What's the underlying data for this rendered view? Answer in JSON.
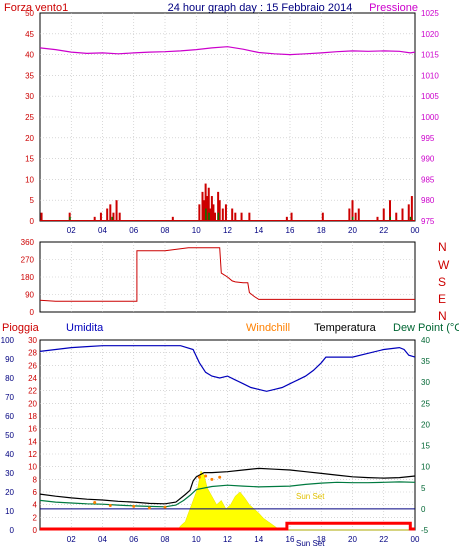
{
  "header": {
    "left_title": "Forza vento1",
    "center_title": "24 hour graph day : 15 Febbraio 2014",
    "right_title": "Pressione"
  },
  "panel2_labels": [
    "N",
    "W",
    "S",
    "E",
    "N"
  ],
  "panel3_header": {
    "pioggia": "Pioggia",
    "umidita": "Umidita",
    "windchill": "Windchill",
    "temperatura": "Temperatura",
    "dewpoint": "Dew Point (°C"
  },
  "annotations": {
    "sun_set": "Sun Set",
    "sun_set_axis": "Sun Set"
  },
  "colors": {
    "wind": "#cc0000",
    "gust": "#007700",
    "pressure": "#cc00cc",
    "direction": "#cc0000",
    "humidity": "#0000bb",
    "temperature": "#000000",
    "dewpoint": "#007a40",
    "windchill": "#ff8000",
    "solar": "#ffff00",
    "rain": "#ff0000",
    "grid": "#c0c0c0",
    "title": "#000080",
    "axis_red": "#cc0000",
    "axis_green": "#006633"
  },
  "chart_data": [
    {
      "type": "bar",
      "ylim_left": [
        0,
        50
      ],
      "yticks_left": [
        0,
        5,
        10,
        15,
        20,
        25,
        30,
        35,
        40,
        45,
        50
      ],
      "ylim_right": [
        975,
        1025
      ],
      "yticks_right": [
        975,
        980,
        985,
        990,
        995,
        1000,
        1005,
        1010,
        1015,
        1020,
        1025
      ],
      "xlim": [
        0,
        24
      ],
      "xticks": [
        "02",
        "04",
        "06",
        "08",
        "10",
        "12",
        "14",
        "16",
        "18",
        "20",
        "22",
        "00"
      ],
      "grid": true,
      "series": [
        {
          "axis": "left",
          "type": "bar",
          "points": [
            [
              0.1,
              2
            ],
            [
              1.9,
              2
            ],
            [
              3.5,
              1
            ],
            [
              3.9,
              2
            ],
            [
              4.3,
              3
            ],
            [
              4.5,
              4
            ],
            [
              4.7,
              2
            ],
            [
              4.9,
              5
            ],
            [
              5.1,
              2
            ],
            [
              8.5,
              1
            ],
            [
              10.2,
              4
            ],
            [
              10.4,
              7
            ],
            [
              10.5,
              5
            ],
            [
              10.6,
              9
            ],
            [
              10.7,
              6
            ],
            [
              10.8,
              8
            ],
            [
              10.9,
              3
            ],
            [
              11.0,
              6
            ],
            [
              11.1,
              4
            ],
            [
              11.2,
              2
            ],
            [
              11.4,
              7
            ],
            [
              11.5,
              5
            ],
            [
              11.7,
              3
            ],
            [
              11.9,
              4
            ],
            [
              12.3,
              3
            ],
            [
              12.5,
              2
            ],
            [
              12.9,
              2
            ],
            [
              13.4,
              2
            ],
            [
              15.8,
              1
            ],
            [
              16.1,
              2
            ],
            [
              18.1,
              2
            ],
            [
              19.8,
              3
            ],
            [
              20.0,
              5
            ],
            [
              20.2,
              2
            ],
            [
              20.4,
              3
            ],
            [
              21.6,
              1
            ],
            [
              22.0,
              3
            ],
            [
              22.4,
              5
            ],
            [
              22.8,
              2
            ],
            [
              23.2,
              3
            ],
            [
              23.6,
              4
            ],
            [
              23.8,
              6
            ]
          ]
        },
        {
          "axis": "left",
          "type": "bar",
          "points": [
            [
              1.9,
              1
            ],
            [
              4.6,
              1
            ],
            [
              10.6,
              3
            ],
            [
              10.8,
              2
            ],
            [
              11.4,
              2
            ],
            [
              20.0,
              1
            ],
            [
              22.4,
              1
            ],
            [
              23.7,
              1
            ]
          ]
        },
        {
          "axis": "right",
          "type": "line",
          "points": [
            [
              0,
              1016.6
            ],
            [
              1,
              1016.2
            ],
            [
              2,
              1015.6
            ],
            [
              3,
              1015.3
            ],
            [
              4,
              1015.4
            ],
            [
              5,
              1015.2
            ],
            [
              6,
              1015.4
            ],
            [
              7,
              1015.6
            ],
            [
              8,
              1015.7
            ],
            [
              9,
              1015.9
            ],
            [
              10,
              1016.2
            ],
            [
              11,
              1016.6
            ],
            [
              12,
              1016.9
            ],
            [
              13,
              1016.3
            ],
            [
              14,
              1015.5
            ],
            [
              15,
              1015.2
            ],
            [
              16,
              1015.0
            ],
            [
              17,
              1015.2
            ],
            [
              18,
              1015.4
            ],
            [
              19,
              1015.7
            ],
            [
              20,
              1015.9
            ],
            [
              21,
              1015.8
            ],
            [
              22,
              1015.9
            ],
            [
              23,
              1015.8
            ],
            [
              23.7,
              1015.4
            ],
            [
              24,
              1015.6
            ]
          ]
        }
      ]
    },
    {
      "type": "line",
      "ylim_left": [
        0,
        360
      ],
      "yticks_left": [
        0,
        90,
        180,
        270,
        360
      ],
      "xlim": [
        0,
        24
      ],
      "grid": true,
      "series": [
        {
          "type": "step",
          "points": [
            [
              0,
              60
            ],
            [
              1,
              55
            ],
            [
              2,
              55
            ],
            [
              3,
              55
            ],
            [
              4,
              55
            ],
            [
              5,
              55
            ],
            [
              6,
              55
            ],
            [
              6.2,
              55
            ],
            [
              6.2,
              315
            ],
            [
              7,
              315
            ],
            [
              8,
              315
            ],
            [
              9,
              325
            ],
            [
              9.5,
              330
            ],
            [
              10,
              330
            ],
            [
              11,
              330
            ],
            [
              11.5,
              330
            ],
            [
              11.6,
              200
            ],
            [
              12,
              180
            ],
            [
              12.3,
              160
            ],
            [
              12.5,
              155
            ],
            [
              13,
              150
            ],
            [
              13.3,
              150
            ],
            [
              13.4,
              100
            ],
            [
              13.7,
              80
            ],
            [
              14,
              65
            ],
            [
              15,
              65
            ],
            [
              16,
              65
            ],
            [
              17,
              65
            ],
            [
              18,
              65
            ],
            [
              19,
              65
            ],
            [
              20,
              65
            ],
            [
              21,
              65
            ],
            [
              22,
              65
            ],
            [
              23,
              65
            ],
            [
              24,
              65
            ]
          ]
        }
      ]
    },
    {
      "type": "line",
      "ylim_left": [
        0,
        100
      ],
      "yticks_left": [
        0,
        10,
        20,
        30,
        40,
        50,
        60,
        70,
        80,
        90,
        100
      ],
      "yticks_pioggia": [
        0,
        2,
        4,
        6,
        8,
        10,
        12,
        14,
        16,
        18,
        20,
        22,
        24,
        26,
        28,
        30
      ],
      "ylim_right": [
        -5,
        40
      ],
      "yticks_right": [
        -5,
        0,
        5,
        10,
        15,
        20,
        25,
        30,
        35,
        40
      ],
      "xlim": [
        0,
        24
      ],
      "xticks": [
        "02",
        "04",
        "06",
        "08",
        "10",
        "12",
        "14",
        "16",
        "18",
        "20",
        "22",
        "00"
      ],
      "grid": true,
      "series": [
        {
          "axis": "left",
          "type": "line",
          "points": [
            [
              0,
              94
            ],
            [
              1,
              95
            ],
            [
              2,
              96
            ],
            [
              3,
              96.5
            ],
            [
              4,
              97
            ],
            [
              5,
              97
            ],
            [
              6,
              97
            ],
            [
              7,
              97
            ],
            [
              8,
              97
            ],
            [
              9,
              97
            ],
            [
              9.8,
              95
            ],
            [
              10.2,
              88
            ],
            [
              10.6,
              83
            ],
            [
              11,
              81
            ],
            [
              11.5,
              80
            ],
            [
              12,
              81
            ],
            [
              12.5,
              79
            ],
            [
              13,
              77
            ],
            [
              13.5,
              75
            ],
            [
              14,
              74
            ],
            [
              14.5,
              73
            ],
            [
              15,
              74
            ],
            [
              15.5,
              75
            ],
            [
              16,
              77
            ],
            [
              16.5,
              79
            ],
            [
              17,
              81
            ],
            [
              17.5,
              84
            ],
            [
              18,
              88
            ],
            [
              18.3,
              91
            ],
            [
              19,
              91
            ],
            [
              20,
              91
            ],
            [
              21,
              93
            ],
            [
              22,
              95
            ],
            [
              23,
              96
            ],
            [
              23.3,
              95
            ],
            [
              23.6,
              92
            ],
            [
              24,
              91
            ]
          ]
        },
        {
          "axis": "right",
          "type": "line",
          "points": [
            [
              0,
              3.5
            ],
            [
              1,
              3
            ],
            [
              2,
              2.6
            ],
            [
              3,
              2.3
            ],
            [
              4,
              2.1
            ],
            [
              5,
              1.8
            ],
            [
              6,
              1.6
            ],
            [
              7,
              1.3
            ],
            [
              8,
              1.2
            ],
            [
              8.7,
              1.6
            ],
            [
              9.3,
              3.4
            ],
            [
              9.6,
              4.4
            ],
            [
              9.8,
              6.6
            ],
            [
              10,
              7.6
            ],
            [
              10.5,
              8.6
            ],
            [
              11,
              8.6
            ],
            [
              12,
              8.8
            ],
            [
              13,
              9.2
            ],
            [
              14,
              9.6
            ],
            [
              15,
              9.4
            ],
            [
              16,
              9.2
            ],
            [
              17,
              8.8
            ],
            [
              18,
              8.4
            ],
            [
              19,
              8
            ],
            [
              20,
              7.6
            ],
            [
              21,
              7.4
            ],
            [
              22,
              7.3
            ],
            [
              23,
              7.4
            ],
            [
              24,
              7.8
            ]
          ]
        },
        {
          "axis": "right",
          "type": "line",
          "points": [
            [
              0,
              2
            ],
            [
              1,
              1.6
            ],
            [
              2,
              1.4
            ],
            [
              3,
              1.2
            ],
            [
              4,
              1.1
            ],
            [
              5,
              0.9
            ],
            [
              6,
              0.7
            ],
            [
              7,
              0.6
            ],
            [
              8,
              0.5
            ],
            [
              8.7,
              0.9
            ],
            [
              9.2,
              2
            ],
            [
              9.6,
              3.2
            ],
            [
              10,
              4.6
            ],
            [
              11,
              5.3
            ],
            [
              12,
              5.6
            ],
            [
              13,
              5.4
            ],
            [
              14,
              5.2
            ],
            [
              15,
              5.3
            ],
            [
              16,
              5.4
            ],
            [
              17,
              5.8
            ],
            [
              18,
              6.1
            ],
            [
              19,
              6.3
            ],
            [
              20,
              6.2
            ],
            [
              21,
              6.2
            ],
            [
              22,
              6.3
            ],
            [
              23,
              6.4
            ],
            [
              24,
              6.3
            ]
          ]
        },
        {
          "axis": "right",
          "type": "line",
          "points": [
            [
              3.5,
              1.5
            ],
            [
              4.5,
              0.8
            ],
            [
              6,
              0.6
            ],
            [
              7,
              0.2
            ],
            [
              8,
              0.4
            ],
            [
              10.2,
              7.5
            ],
            [
              10.6,
              7.8
            ],
            [
              11,
              7.0
            ],
            [
              11.5,
              7.5
            ]
          ]
        },
        {
          "axis": "right",
          "type": "area",
          "points": [
            [
              0,
              0
            ],
            [
              8.8,
              0
            ],
            [
              9.0,
              0.5
            ],
            [
              9.3,
              1
            ],
            [
              9.5,
              2
            ],
            [
              9.7,
              3
            ],
            [
              9.9,
              4
            ],
            [
              10.1,
              5
            ],
            [
              10.3,
              7
            ],
            [
              10.5,
              6.5
            ],
            [
              10.7,
              5
            ],
            [
              11,
              4
            ],
            [
              11.3,
              3
            ],
            [
              11.6,
              3.5
            ],
            [
              11.9,
              2.5
            ],
            [
              12.2,
              3
            ],
            [
              12.5,
              4
            ],
            [
              12.8,
              4.5
            ],
            [
              13.1,
              3.8
            ],
            [
              13.4,
              3
            ],
            [
              13.7,
              2.5
            ],
            [
              14,
              2
            ],
            [
              14.3,
              1.4
            ],
            [
              14.6,
              1
            ],
            [
              14.9,
              0.6
            ],
            [
              15.2,
              0.2
            ],
            [
              15.6,
              0
            ],
            [
              24,
              0
            ]
          ]
        },
        {
          "axis": "left",
          "type": "step",
          "points": [
            [
              0,
              0
            ],
            [
              15.8,
              0
            ],
            [
              15.8,
              3
            ],
            [
              23.7,
              3
            ],
            [
              23.7,
              0
            ],
            [
              24,
              0
            ]
          ]
        }
      ]
    }
  ]
}
